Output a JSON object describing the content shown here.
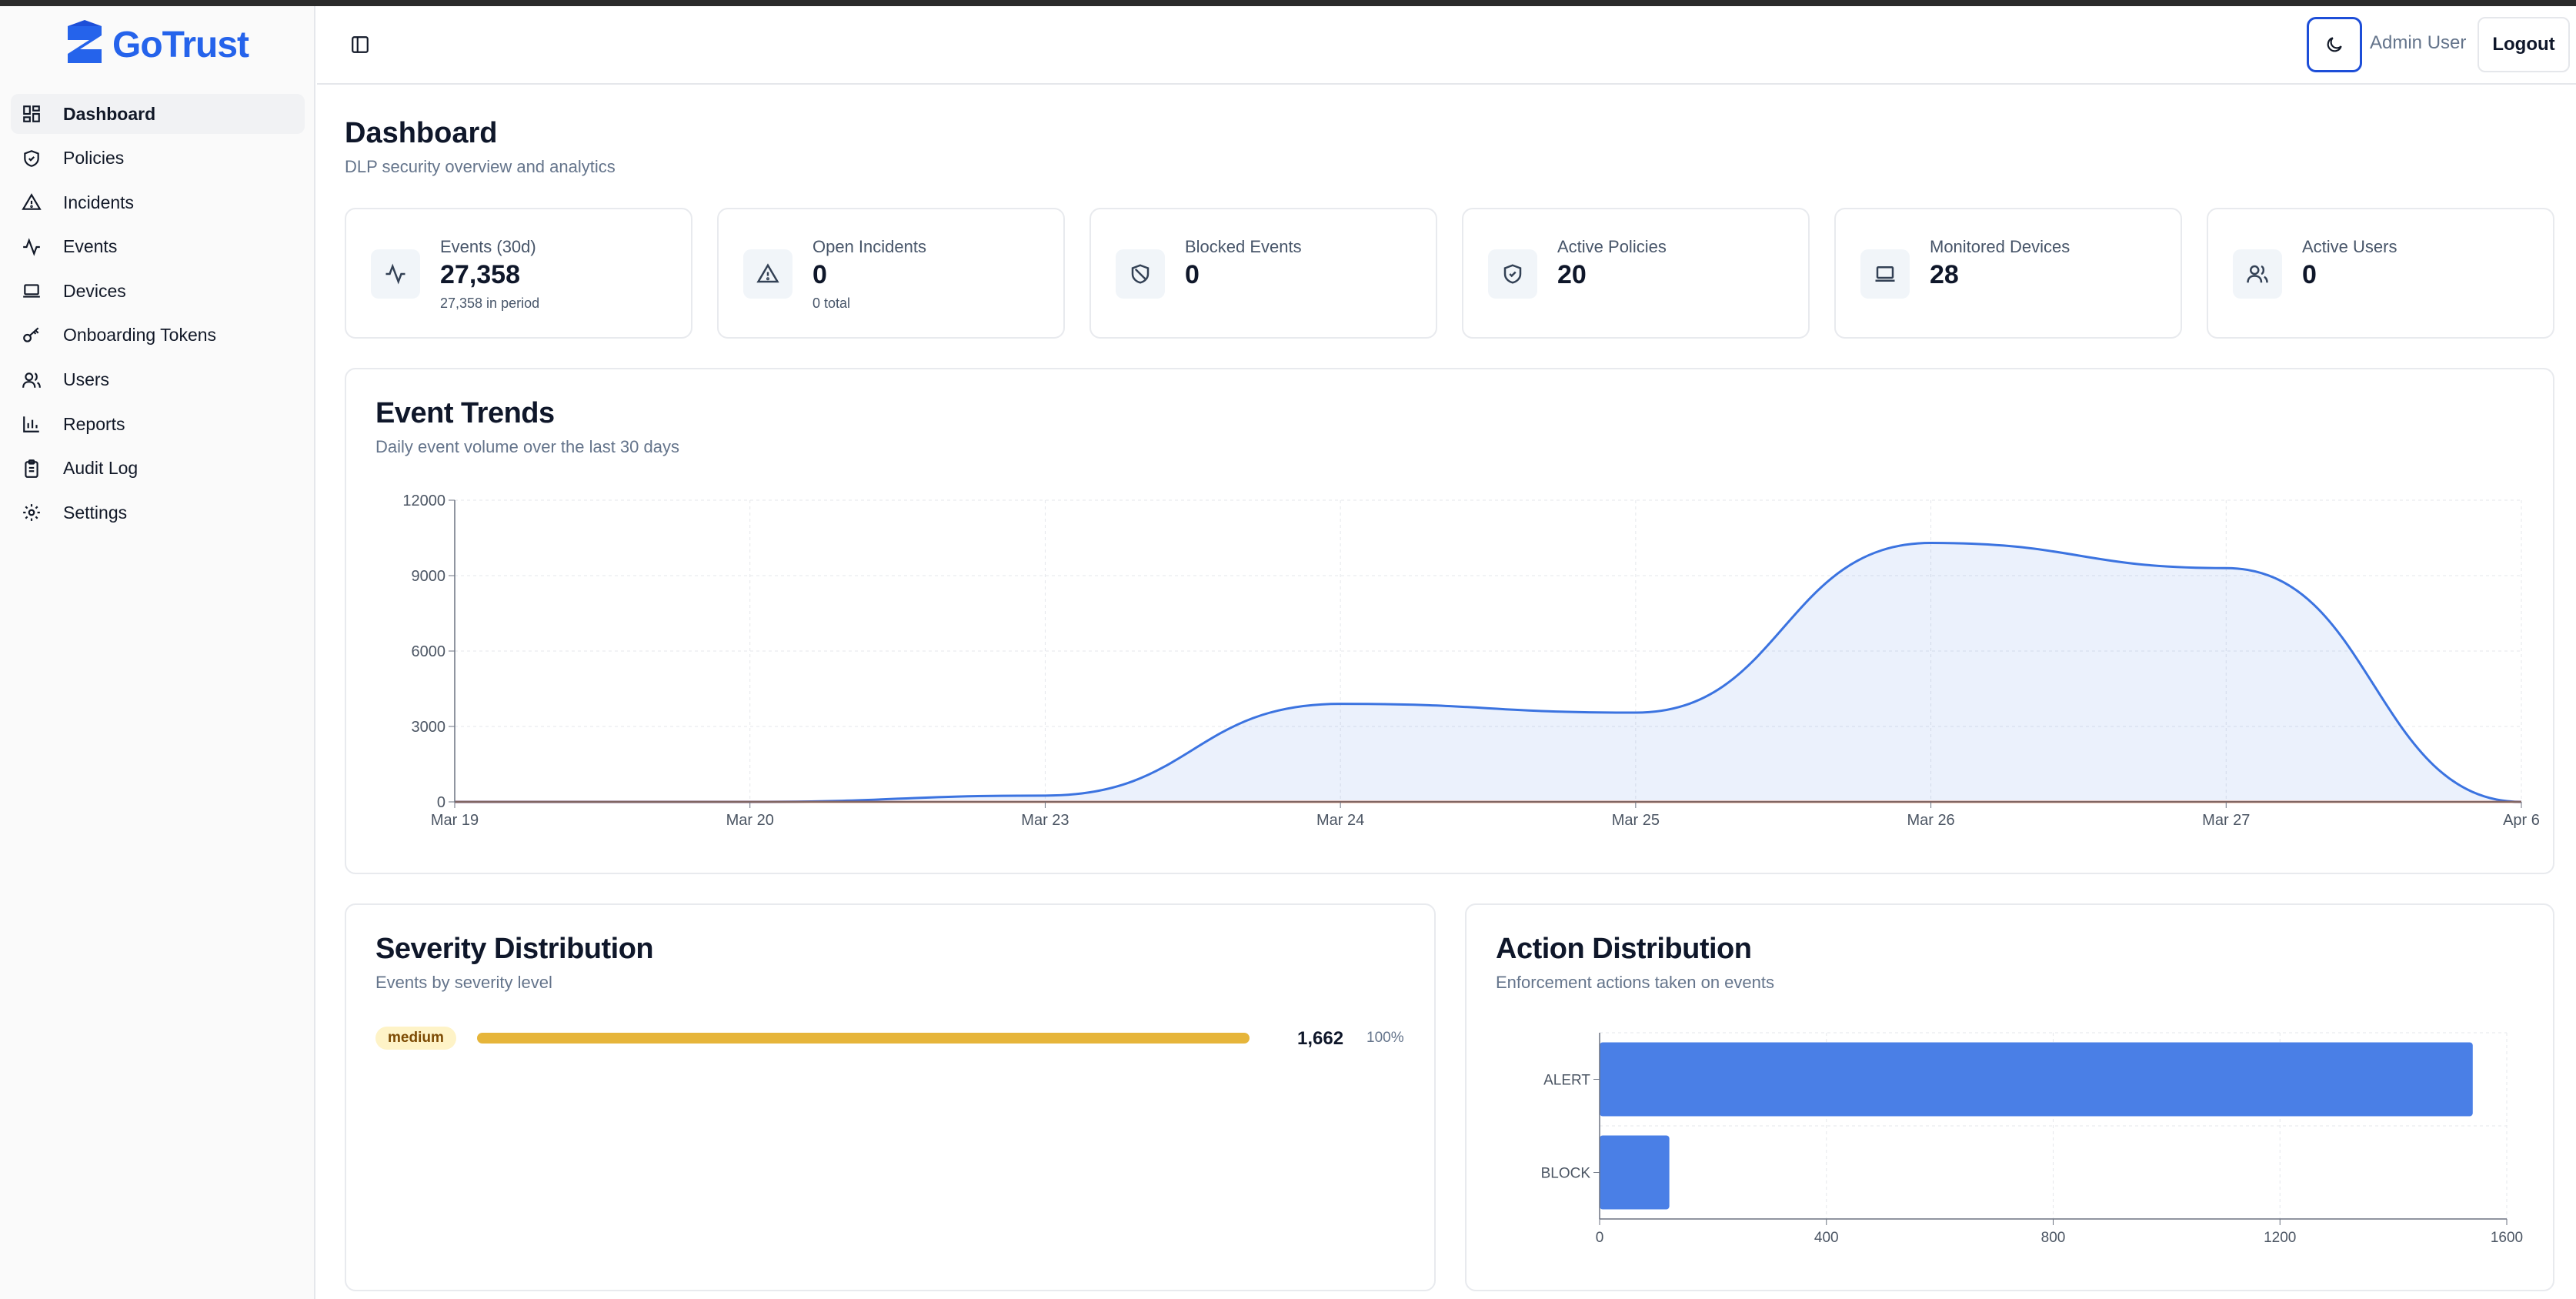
{
  "app": {
    "brand": "GoTrust",
    "accent": "#2563eb"
  },
  "sidebar": {
    "items": [
      {
        "label": "Dashboard",
        "icon": "layout-dashboard-icon",
        "active": true
      },
      {
        "label": "Policies",
        "icon": "shield-icon"
      },
      {
        "label": "Incidents",
        "icon": "alert-triangle-icon"
      },
      {
        "label": "Events",
        "icon": "activity-icon"
      },
      {
        "label": "Devices",
        "icon": "laptop-icon"
      },
      {
        "label": "Onboarding Tokens",
        "icon": "key-icon"
      },
      {
        "label": "Users",
        "icon": "users-icon"
      },
      {
        "label": "Reports",
        "icon": "bar-chart-icon"
      },
      {
        "label": "Audit Log",
        "icon": "clipboard-list-icon"
      },
      {
        "label": "Settings",
        "icon": "settings-icon"
      }
    ]
  },
  "header": {
    "user": "Admin User",
    "logout": "Logout",
    "theme_icon": "moon-icon",
    "toggle_icon": "panel-left-icon"
  },
  "page": {
    "title": "Dashboard",
    "subtitle": "DLP security overview and analytics"
  },
  "stats": [
    {
      "label": "Events (30d)",
      "value": "27,358",
      "sub": "27,358 in period",
      "icon": "activity-icon"
    },
    {
      "label": "Open Incidents",
      "value": "0",
      "sub": "0 total",
      "icon": "alert-triangle-icon"
    },
    {
      "label": "Blocked Events",
      "value": "0",
      "sub": "",
      "icon": "shield-off-icon"
    },
    {
      "label": "Active Policies",
      "value": "20",
      "sub": "",
      "icon": "shield-check-icon"
    },
    {
      "label": "Monitored Devices",
      "value": "28",
      "sub": "",
      "icon": "laptop-icon"
    },
    {
      "label": "Active Users",
      "value": "0",
      "sub": "",
      "icon": "users-icon"
    }
  ],
  "trends": {
    "title": "Event Trends",
    "subtitle": "Daily event volume over the last 30 days"
  },
  "severity": {
    "title": "Severity Distribution",
    "subtitle": "Events by severity level",
    "rows": [
      {
        "label": "medium",
        "count": "1,662",
        "pct": "100%",
        "fraction": 1.0,
        "color": "#e6b53a"
      }
    ]
  },
  "actions": {
    "title": "Action Distribution",
    "subtitle": "Enforcement actions taken on events"
  },
  "chart_data": [
    {
      "type": "area",
      "x": [
        "Mar 19",
        "Mar 20",
        "Mar 23",
        "Mar 24",
        "Mar 25",
        "Mar 26",
        "Mar 27",
        "Apr 6"
      ],
      "series": [
        {
          "values": [
            0,
            0,
            250,
            3900,
            3550,
            10300,
            9300,
            0
          ],
          "color": "#3b73e0"
        },
        {
          "values": [
            0,
            0,
            0,
            0,
            0,
            0,
            0,
            0
          ],
          "color": "#c2410c"
        }
      ],
      "ylim": [
        0,
        12000
      ],
      "yticks": [
        "0",
        "3000",
        "6000",
        "9000",
        "12000"
      ],
      "grid": true
    },
    {
      "type": "bar",
      "orientation": "horizontal",
      "categories": [
        "ALERT",
        "BLOCK"
      ],
      "values": [
        1540,
        123
      ],
      "xlim": [
        0,
        1600
      ],
      "xticks": [
        "0",
        "400",
        "800",
        "1200",
        "1600"
      ],
      "color": "#4a7fe6",
      "grid": true
    }
  ]
}
